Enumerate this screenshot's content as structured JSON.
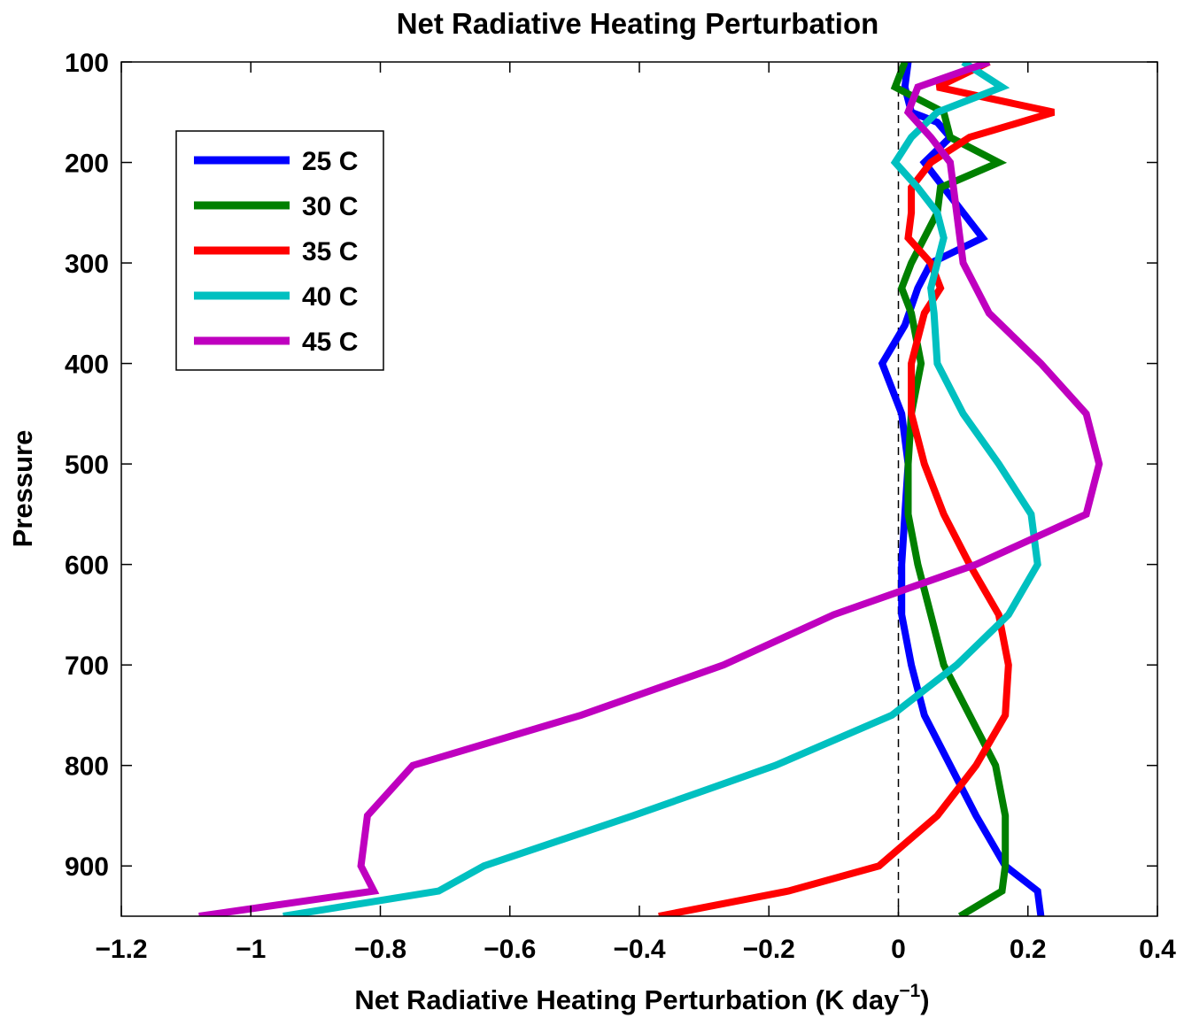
{
  "chart_data": {
    "type": "line",
    "title": "Net Radiative Heating Perturbation",
    "xlabel": "Net Radiative Heating Perturbation (K day",
    "xlabel_sup": "−1",
    "xlabel_close": ")",
    "ylabel": "Pressure",
    "xlim": [
      -1.2,
      0.4
    ],
    "ylim": [
      100,
      950
    ],
    "y_reversed": true,
    "xticks": [
      -1.2,
      -1,
      -0.8,
      -0.6,
      -0.4,
      -0.2,
      0,
      0.2,
      0.4
    ],
    "xtick_labels": [
      "−1.2",
      "−1",
      "−0.8",
      "−0.6",
      "−0.4",
      "−0.2",
      "0",
      "0.2",
      "0.4"
    ],
    "yticks": [
      100,
      200,
      300,
      400,
      500,
      600,
      700,
      800,
      900
    ],
    "ytick_labels": [
      "100",
      "200",
      "300",
      "400",
      "500",
      "600",
      "700",
      "800",
      "900"
    ],
    "zero_line": {
      "x": 0,
      "style": "dashed",
      "color": "#000000"
    },
    "grid": false,
    "legend_position": "upper-left",
    "series": [
      {
        "name": "25 C",
        "color": "#0000ff",
        "points": [
          [
            0.015,
            100
          ],
          [
            0.01,
            125
          ],
          [
            0.02,
            150
          ],
          [
            0.06,
            160
          ],
          [
            0.08,
            175
          ],
          [
            0.04,
            200
          ],
          [
            0.07,
            225
          ],
          [
            0.1,
            250
          ],
          [
            0.13,
            275
          ],
          [
            0.05,
            300
          ],
          [
            0.03,
            325
          ],
          [
            0.01,
            362
          ],
          [
            -0.025,
            400
          ],
          [
            0.005,
            450
          ],
          [
            0.015,
            500
          ],
          [
            0.01,
            550
          ],
          [
            0.005,
            600
          ],
          [
            0.005,
            650
          ],
          [
            0.02,
            700
          ],
          [
            0.04,
            750
          ],
          [
            0.08,
            800
          ],
          [
            0.12,
            850
          ],
          [
            0.165,
            900
          ],
          [
            0.215,
            925
          ],
          [
            0.22,
            950
          ]
        ]
      },
      {
        "name": "30 C",
        "color": "#008000",
        "points": [
          [
            0.01,
            100
          ],
          [
            -0.005,
            125
          ],
          [
            0.07,
            150
          ],
          [
            0.08,
            175
          ],
          [
            0.155,
            200
          ],
          [
            0.065,
            225
          ],
          [
            0.06,
            250
          ],
          [
            0.04,
            275
          ],
          [
            0.02,
            300
          ],
          [
            0.005,
            325
          ],
          [
            0.02,
            350
          ],
          [
            0.035,
            400
          ],
          [
            0.02,
            450
          ],
          [
            0.015,
            500
          ],
          [
            0.015,
            550
          ],
          [
            0.03,
            600
          ],
          [
            0.05,
            650
          ],
          [
            0.07,
            700
          ],
          [
            0.11,
            750
          ],
          [
            0.15,
            800
          ],
          [
            0.165,
            850
          ],
          [
            0.165,
            900
          ],
          [
            0.16,
            925
          ],
          [
            0.095,
            950
          ]
        ]
      },
      {
        "name": "35 C",
        "color": "#ff0000",
        "points": [
          [
            0.14,
            100
          ],
          [
            0.06,
            125
          ],
          [
            0.24,
            150
          ],
          [
            0.11,
            175
          ],
          [
            0.05,
            200
          ],
          [
            0.02,
            225
          ],
          [
            0.02,
            250
          ],
          [
            0.015,
            275
          ],
          [
            0.05,
            300
          ],
          [
            0.065,
            325
          ],
          [
            0.04,
            350
          ],
          [
            0.02,
            400
          ],
          [
            0.02,
            450
          ],
          [
            0.04,
            500
          ],
          [
            0.07,
            550
          ],
          [
            0.11,
            600
          ],
          [
            0.155,
            650
          ],
          [
            0.17,
            700
          ],
          [
            0.165,
            750
          ],
          [
            0.12,
            800
          ],
          [
            0.06,
            850
          ],
          [
            -0.03,
            900
          ],
          [
            -0.17,
            925
          ],
          [
            -0.37,
            950
          ]
        ]
      },
      {
        "name": "40 C",
        "color": "#00c0c0",
        "points": [
          [
            0.1,
            100
          ],
          [
            0.16,
            125
          ],
          [
            0.06,
            150
          ],
          [
            0.02,
            175
          ],
          [
            -0.005,
            200
          ],
          [
            0.03,
            225
          ],
          [
            0.06,
            250
          ],
          [
            0.07,
            275
          ],
          [
            0.06,
            300
          ],
          [
            0.05,
            325
          ],
          [
            0.055,
            350
          ],
          [
            0.06,
            400
          ],
          [
            0.1,
            450
          ],
          [
            0.155,
            500
          ],
          [
            0.205,
            550
          ],
          [
            0.215,
            600
          ],
          [
            0.17,
            650
          ],
          [
            0.09,
            700
          ],
          [
            -0.01,
            750
          ],
          [
            -0.19,
            800
          ],
          [
            -0.41,
            850
          ],
          [
            -0.64,
            900
          ],
          [
            -0.71,
            925
          ],
          [
            -0.95,
            950
          ]
        ]
      },
      {
        "name": "45 C",
        "color": "#bf00bf",
        "points": [
          [
            0.14,
            100
          ],
          [
            0.03,
            125
          ],
          [
            0.015,
            150
          ],
          [
            0.05,
            175
          ],
          [
            0.08,
            200
          ],
          [
            0.09,
            250
          ],
          [
            0.1,
            300
          ],
          [
            0.14,
            350
          ],
          [
            0.22,
            400
          ],
          [
            0.29,
            450
          ],
          [
            0.31,
            500
          ],
          [
            0.29,
            550
          ],
          [
            0.12,
            600
          ],
          [
            -0.1,
            650
          ],
          [
            -0.27,
            700
          ],
          [
            -0.49,
            750
          ],
          [
            -0.75,
            800
          ],
          [
            -0.82,
            850
          ],
          [
            -0.83,
            900
          ],
          [
            -0.81,
            925
          ],
          [
            -1.08,
            950
          ]
        ]
      }
    ]
  }
}
